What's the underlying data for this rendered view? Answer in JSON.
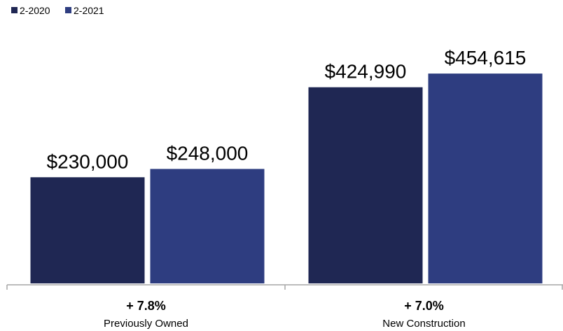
{
  "chart_data": {
    "type": "bar",
    "categories": [
      "Previously Owned",
      "New Construction"
    ],
    "changes": [
      "+ 7.8%",
      "+ 7.0%"
    ],
    "series": [
      {
        "name": "2-2020",
        "values": [
          230000,
          424990
        ],
        "labels": [
          "$230,000",
          "$424,990"
        ],
        "color": "#1f2753"
      },
      {
        "name": "2-2021",
        "values": [
          248000,
          454615
        ],
        "labels": [
          "$248,000",
          "$454,615"
        ],
        "color": "#2e3d80"
      }
    ],
    "ylim": [
      0,
      520000
    ],
    "grid": false,
    "legend_position": "top-left",
    "axis_color": "#a6a6a6"
  }
}
